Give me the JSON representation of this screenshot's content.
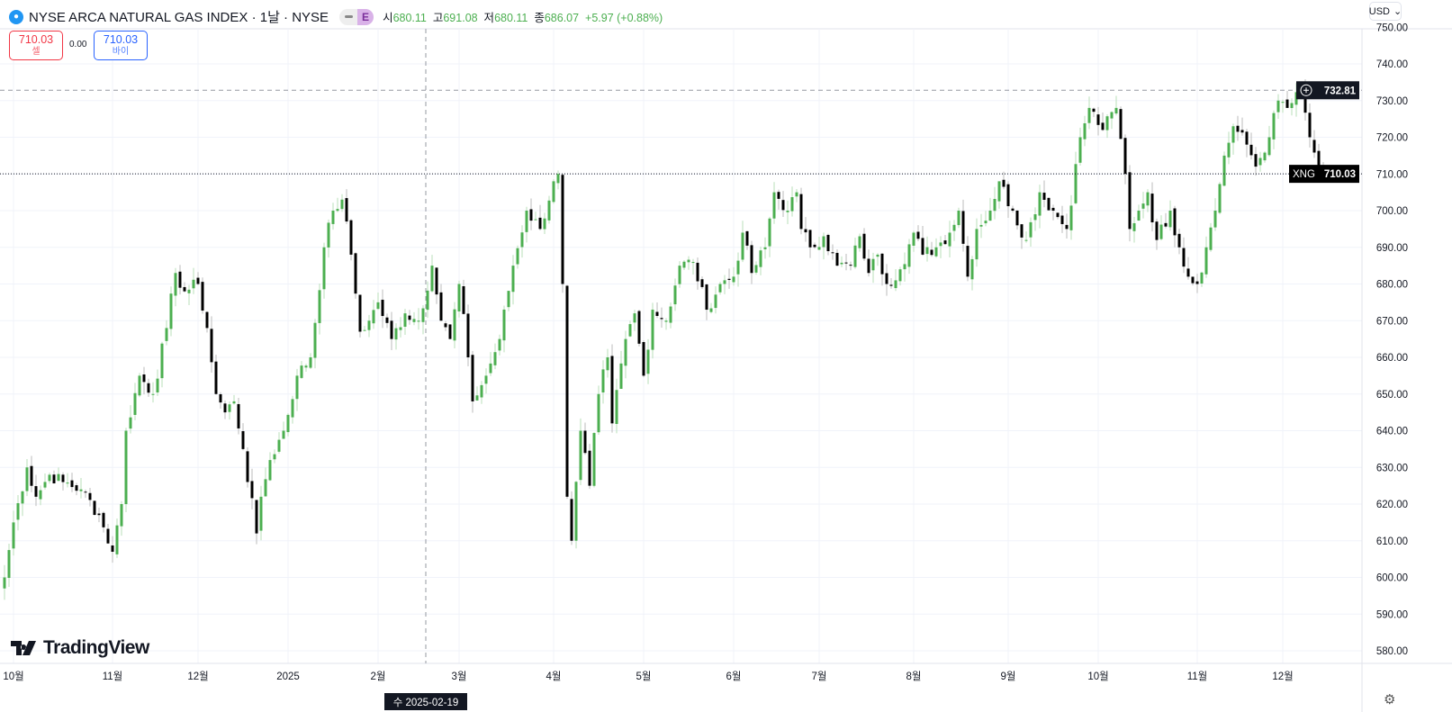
{
  "header": {
    "title": "NYSE ARCA NATURAL GAS INDEX · 1날 · NYSE",
    "badge": "E",
    "open_label": "시",
    "open": "680.11",
    "high_label": "고",
    "high": "691.08",
    "low_label": "저",
    "low": "680.11",
    "close_label": "종",
    "close": "686.07",
    "change": "+5.97 (+0.88%)"
  },
  "trade": {
    "sell_price": "710.03",
    "sell_label": "셀",
    "spread": "0.00",
    "buy_price": "710.03",
    "buy_label": "바이"
  },
  "currency": "USD",
  "crosshair": {
    "date_label": "수 2025-02-19",
    "day": 93.6,
    "price_label": "732.81",
    "price": 732.81
  },
  "last": {
    "symbol": "XNG",
    "price_label": "710.03",
    "price": 710.03
  },
  "brand": "TradingView",
  "colors": {
    "up": "#4caf50",
    "down": "#000000",
    "grid": "#f0f3fa"
  },
  "chart_data": {
    "type": "candlestick",
    "ylim": [
      575,
      752
    ],
    "yticks": [
      "580.00",
      "590.00",
      "600.00",
      "610.00",
      "620.00",
      "630.00",
      "640.00",
      "650.00",
      "660.00",
      "670.00",
      "680.00",
      "690.00",
      "700.00",
      "710.00",
      "720.00",
      "730.00",
      "740.00",
      "750.00"
    ],
    "xticks": [
      {
        "label": "10월",
        "day": 2
      },
      {
        "label": "11월",
        "day": 24
      },
      {
        "label": "12월",
        "day": 43
      },
      {
        "label": "2025",
        "day": 63
      },
      {
        "label": "2월",
        "day": 83
      },
      {
        "label": "3월",
        "day": 101
      },
      {
        "label": "4월",
        "day": 122
      },
      {
        "label": "5월",
        "day": 142
      },
      {
        "label": "6월",
        "day": 162
      },
      {
        "label": "7월",
        "day": 181
      },
      {
        "label": "8월",
        "day": 202
      },
      {
        "label": "9월",
        "day": 223
      },
      {
        "label": "10월",
        "day": 243
      },
      {
        "label": "11월",
        "day": 265
      },
      {
        "label": "12월",
        "day": 284
      }
    ],
    "close_anchors": [
      [
        0,
        600
      ],
      [
        2,
        615
      ],
      [
        5,
        630
      ],
      [
        7,
        622
      ],
      [
        10,
        628
      ],
      [
        13,
        626
      ],
      [
        17,
        624
      ],
      [
        21,
        617
      ],
      [
        24,
        607
      ],
      [
        26,
        620
      ],
      [
        27,
        640
      ],
      [
        30,
        655
      ],
      [
        33,
        650
      ],
      [
        36,
        668
      ],
      [
        38,
        683
      ],
      [
        40,
        678
      ],
      [
        43,
        680
      ],
      [
        45,
        668
      ],
      [
        47,
        650
      ],
      [
        49,
        645
      ],
      [
        51,
        648
      ],
      [
        53,
        635
      ],
      [
        56,
        612
      ],
      [
        57,
        622
      ],
      [
        59,
        632
      ],
      [
        62,
        640
      ],
      [
        65,
        655
      ],
      [
        68,
        660
      ],
      [
        71,
        690
      ],
      [
        73,
        700
      ],
      [
        75,
        703
      ],
      [
        77,
        688
      ],
      [
        79,
        667
      ],
      [
        81,
        670
      ],
      [
        83,
        675
      ],
      [
        86,
        665
      ],
      [
        89,
        672
      ],
      [
        92,
        670
      ],
      [
        95,
        685
      ],
      [
        97,
        670
      ],
      [
        99,
        665
      ],
      [
        101,
        680
      ],
      [
        103,
        660
      ],
      [
        104,
        648
      ],
      [
        107,
        655
      ],
      [
        110,
        665
      ],
      [
        113,
        685
      ],
      [
        116,
        700
      ],
      [
        119,
        695
      ],
      [
        122,
        708
      ],
      [
        123,
        710
      ],
      [
        124,
        680
      ],
      [
        125,
        622
      ],
      [
        126,
        610
      ],
      [
        128,
        640
      ],
      [
        130,
        625
      ],
      [
        132,
        650
      ],
      [
        134,
        660
      ],
      [
        135,
        642
      ],
      [
        138,
        665
      ],
      [
        140,
        672
      ],
      [
        142,
        655
      ],
      [
        144,
        673
      ],
      [
        147,
        670
      ],
      [
        150,
        685
      ],
      [
        153,
        686
      ],
      [
        156,
        673
      ],
      [
        159,
        680
      ],
      [
        162,
        682
      ],
      [
        164,
        694
      ],
      [
        166,
        683
      ],
      [
        169,
        690
      ],
      [
        171,
        705
      ],
      [
        174,
        700
      ],
      [
        176,
        705
      ],
      [
        177,
        695
      ],
      [
        179,
        690
      ],
      [
        182,
        693
      ],
      [
        185,
        685
      ],
      [
        188,
        685
      ],
      [
        190,
        693
      ],
      [
        192,
        683
      ],
      [
        194,
        688
      ],
      [
        196,
        680
      ],
      [
        199,
        684
      ],
      [
        202,
        694
      ],
      [
        204,
        688
      ],
      [
        207,
        690
      ],
      [
        210,
        694
      ],
      [
        212,
        700
      ],
      [
        214,
        682
      ],
      [
        216,
        695
      ],
      [
        219,
        700
      ],
      [
        221,
        708
      ],
      [
        224,
        700
      ],
      [
        227,
        692
      ],
      [
        230,
        705
      ],
      [
        233,
        700
      ],
      [
        236,
        695
      ],
      [
        239,
        720
      ],
      [
        241,
        728
      ],
      [
        244,
        722
      ],
      [
        247,
        728
      ],
      [
        249,
        710
      ],
      [
        250,
        695
      ],
      [
        252,
        700
      ],
      [
        254,
        705
      ],
      [
        256,
        692
      ],
      [
        259,
        700
      ],
      [
        261,
        690
      ],
      [
        263,
        682
      ],
      [
        265,
        680
      ],
      [
        267,
        690
      ],
      [
        269,
        700
      ],
      [
        271,
        715
      ],
      [
        273,
        723
      ],
      [
        276,
        718
      ],
      [
        278,
        712
      ],
      [
        281,
        720
      ],
      [
        283,
        730
      ],
      [
        285,
        728
      ],
      [
        288,
        732
      ],
      [
        290,
        720
      ],
      [
        292,
        712
      ],
      [
        293,
        710.03
      ]
    ]
  }
}
